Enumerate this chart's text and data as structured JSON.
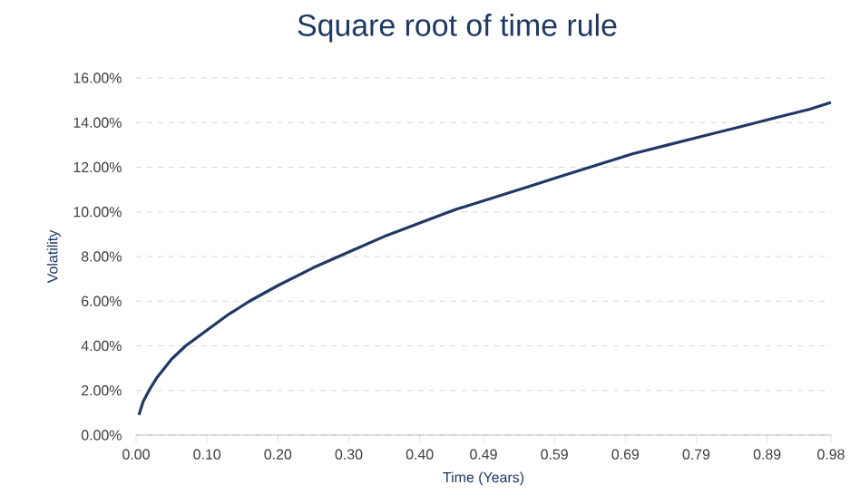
{
  "chart_data": {
    "type": "line",
    "title": "Square root of time rule",
    "xlabel": "Time (Years)",
    "ylabel": "Volatility",
    "x": [
      0.004,
      0.01,
      0.02,
      0.03,
      0.05,
      0.07,
      0.1,
      0.13,
      0.16,
      0.2,
      0.25,
      0.3,
      0.35,
      0.4,
      0.45,
      0.5,
      0.55,
      0.6,
      0.65,
      0.7,
      0.75,
      0.8,
      0.85,
      0.9,
      0.95,
      0.98
    ],
    "series": [
      {
        "color": "#203864",
        "values": [
          0.9,
          1.5,
          2.1,
          2.6,
          3.4,
          4.0,
          4.7,
          5.4,
          6.0,
          6.7,
          7.5,
          8.2,
          8.9,
          9.5,
          10.1,
          10.6,
          11.1,
          11.6,
          12.1,
          12.6,
          13.0,
          13.4,
          13.8,
          14.2,
          14.6,
          14.9
        ]
      }
    ],
    "xlim": [
      0,
      0.98
    ],
    "ylim": [
      0,
      16
    ],
    "xticks": [
      {
        "value": 0,
        "label": "0.00"
      },
      {
        "value": 0.1,
        "label": "0.10"
      },
      {
        "value": 0.2,
        "label": "0.20"
      },
      {
        "value": 0.3,
        "label": "0.30"
      },
      {
        "value": 0.4,
        "label": "0.40"
      },
      {
        "value": 0.49,
        "label": "0.49"
      },
      {
        "value": 0.59,
        "label": "0.59"
      },
      {
        "value": 0.69,
        "label": "0.69"
      },
      {
        "value": 0.79,
        "label": "0.79"
      },
      {
        "value": 0.89,
        "label": "0.89"
      },
      {
        "value": 0.98,
        "label": "0.98"
      }
    ],
    "yticks": [
      {
        "value": 0,
        "label": "0.00%"
      },
      {
        "value": 2,
        "label": "2.00%"
      },
      {
        "value": 4,
        "label": "4.00%"
      },
      {
        "value": 6,
        "label": "6.00%"
      },
      {
        "value": 8,
        "label": "8.00%"
      },
      {
        "value": 10,
        "label": "10.00%"
      },
      {
        "value": 12,
        "label": "12.00%"
      },
      {
        "value": 14,
        "label": "14.00%"
      },
      {
        "value": 16,
        "label": "16.00%"
      }
    ],
    "grid": "y",
    "marker": "none",
    "line_style": "solid"
  }
}
